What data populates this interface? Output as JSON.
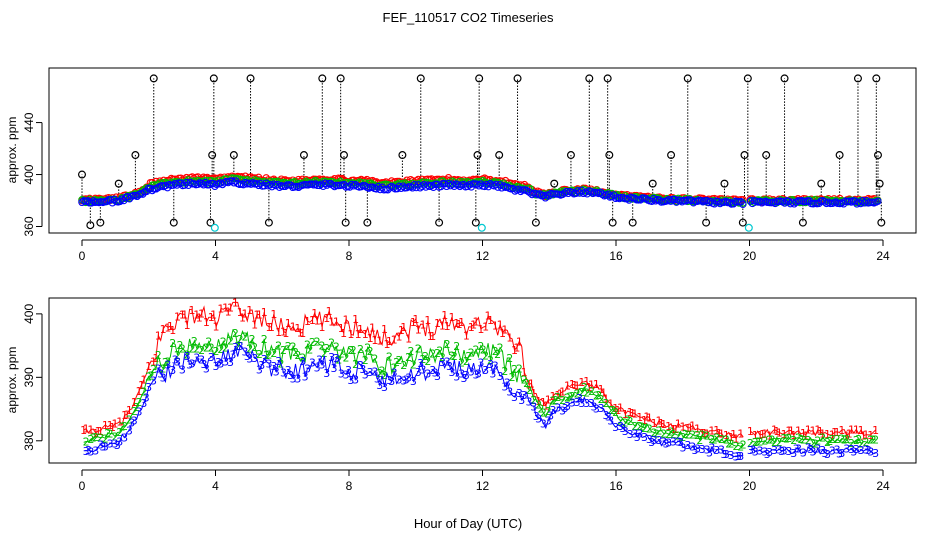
{
  "chart_data": {
    "type": "line",
    "title": "FEF_110517  CO2 Timeseries",
    "xlabel": "Hour of Day (UTC)",
    "xlim": [
      0,
      24
    ],
    "x_ticks": [
      0,
      4,
      8,
      12,
      16,
      20,
      24
    ],
    "panels": [
      {
        "name": "raw-timeseries",
        "ylabel": "approx. ppm",
        "ylim": [
          355,
          482
        ],
        "y_ticks": [
          360,
          400,
          440
        ],
        "colors": {
          "s1": "#ff0000",
          "s2": "#00bb00",
          "s3": "#0000ff",
          "spike": "#000000",
          "cyan": "#00c8d0"
        },
        "marker": "o",
        "series_from_profile": {
          "profile_x": [
            0.0,
            0.5,
            1.0,
            1.2,
            1.5,
            1.8,
            2.0,
            2.3,
            2.8,
            3.5,
            4.0,
            4.5,
            5.0,
            5.5,
            6.0,
            6.5,
            7.0,
            7.5,
            8.0,
            8.5,
            9.0,
            9.5,
            10.0,
            10.5,
            11.0,
            11.5,
            12.0,
            12.5,
            13.0,
            13.3,
            13.6,
            13.9,
            14.1,
            14.5,
            15.0,
            15.5,
            16.0,
            16.3,
            17.0,
            17.5,
            18.0,
            18.5,
            19.0,
            19.5,
            19.85,
            20.0,
            20.5,
            21.0,
            22.0,
            23.0,
            23.8
          ],
          "profile_y": [
            379,
            379.5,
            380,
            381,
            383,
            386,
            389,
            391,
            393,
            394,
            393,
            395,
            394,
            393,
            392,
            392,
            393,
            393,
            392,
            392,
            390,
            391,
            392,
            392,
            393,
            392,
            393,
            392,
            389,
            388,
            385,
            383,
            385,
            386,
            387,
            386,
            383,
            382,
            381,
            380,
            380,
            379.5,
            379,
            378.5,
            378.5,
            379,
            379,
            379,
            379,
            379,
            379
          ]
        },
        "spikes": [
          {
            "x": 0.0,
            "y": 400
          },
          {
            "x": 0.25,
            "y": 361
          },
          {
            "x": 0.55,
            "y": 363
          },
          {
            "x": 1.1,
            "y": 393
          },
          {
            "x": 1.6,
            "y": 415
          },
          {
            "x": 2.15,
            "y": 474
          },
          {
            "x": 2.75,
            "y": 363
          },
          {
            "x": 3.9,
            "y": 415
          },
          {
            "x": 3.85,
            "y": 363
          },
          {
            "x": 3.95,
            "y": 474
          },
          {
            "x": 4.55,
            "y": 415
          },
          {
            "x": 5.05,
            "y": 474
          },
          {
            "x": 5.6,
            "y": 363
          },
          {
            "x": 6.65,
            "y": 415
          },
          {
            "x": 7.2,
            "y": 474
          },
          {
            "x": 7.75,
            "y": 474
          },
          {
            "x": 7.85,
            "y": 415
          },
          {
            "x": 7.9,
            "y": 363
          },
          {
            "x": 8.55,
            "y": 363
          },
          {
            "x": 9.6,
            "y": 415
          },
          {
            "x": 10.15,
            "y": 474
          },
          {
            "x": 10.7,
            "y": 363
          },
          {
            "x": 11.8,
            "y": 363
          },
          {
            "x": 11.9,
            "y": 474
          },
          {
            "x": 11.85,
            "y": 415
          },
          {
            "x": 12.5,
            "y": 415
          },
          {
            "x": 13.05,
            "y": 474
          },
          {
            "x": 13.6,
            "y": 363
          },
          {
            "x": 14.15,
            "y": 393
          },
          {
            "x": 14.65,
            "y": 415
          },
          {
            "x": 15.2,
            "y": 474
          },
          {
            "x": 15.75,
            "y": 474
          },
          {
            "x": 15.8,
            "y": 415
          },
          {
            "x": 15.9,
            "y": 363
          },
          {
            "x": 16.5,
            "y": 363
          },
          {
            "x": 17.1,
            "y": 393
          },
          {
            "x": 17.65,
            "y": 415
          },
          {
            "x": 18.15,
            "y": 474
          },
          {
            "x": 18.7,
            "y": 363
          },
          {
            "x": 19.25,
            "y": 393
          },
          {
            "x": 19.8,
            "y": 363
          },
          {
            "x": 19.85,
            "y": 415
          },
          {
            "x": 19.95,
            "y": 474
          },
          {
            "x": 20.5,
            "y": 415
          },
          {
            "x": 21.05,
            "y": 474
          },
          {
            "x": 21.6,
            "y": 363
          },
          {
            "x": 22.15,
            "y": 393
          },
          {
            "x": 22.7,
            "y": 415
          },
          {
            "x": 23.25,
            "y": 474
          },
          {
            "x": 23.8,
            "y": 474
          },
          {
            "x": 23.85,
            "y": 415
          },
          {
            "x": 23.9,
            "y": 393
          },
          {
            "x": 23.95,
            "y": 363
          }
        ],
        "cyan_points": [
          {
            "x": 3.98,
            "y": 359
          },
          {
            "x": 11.98,
            "y": 359
          },
          {
            "x": 19.98,
            "y": 359
          }
        ]
      },
      {
        "name": "series-detail",
        "ylabel": "approx. ppm",
        "ylim": [
          376.5,
          402.5
        ],
        "y_ticks": [
          380,
          390,
          400
        ],
        "series": [
          {
            "name": "1",
            "color": "#ff0000",
            "offset_base": 4,
            "offset_peak": 8
          },
          {
            "name": "2",
            "color": "#00bb00",
            "offset_base": 1.0,
            "offset_peak": 2
          },
          {
            "name": "3",
            "color": "#0000ff",
            "offset_base": -0.5,
            "offset_peak": -1.5
          }
        ],
        "gap_x": [
          19.85,
          20.0
        ]
      }
    ]
  }
}
